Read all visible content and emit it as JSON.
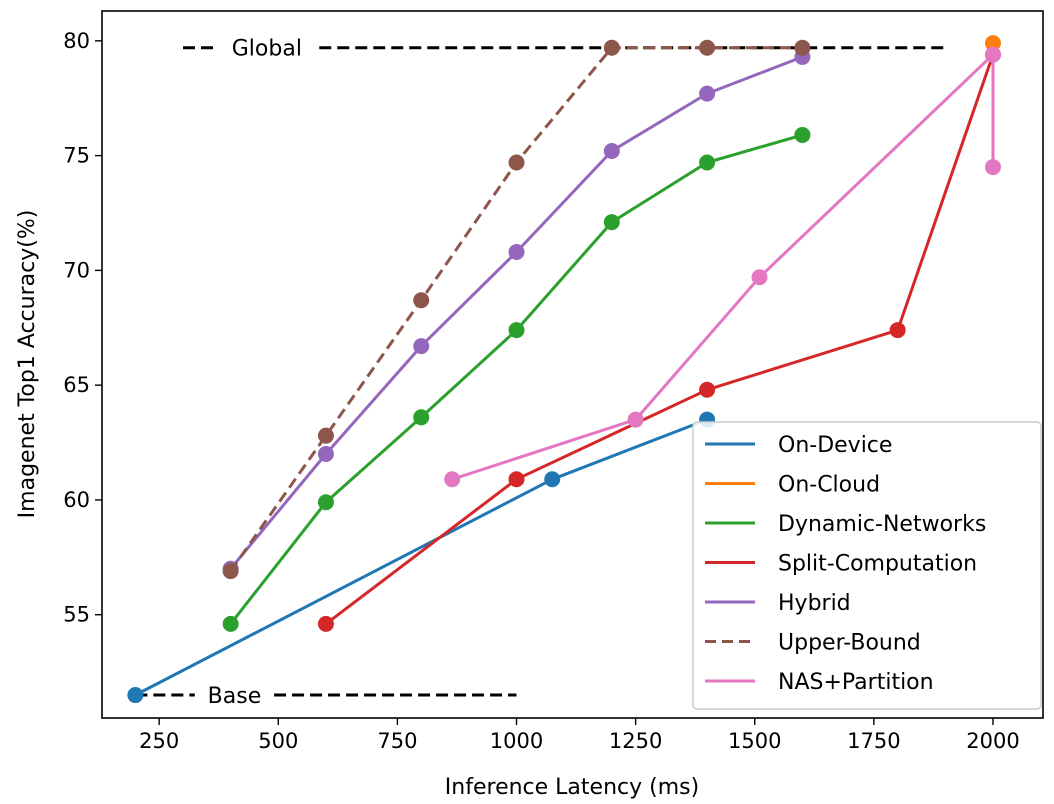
{
  "chart_data": {
    "type": "line",
    "xlabel": "Inference Latency (ms)",
    "ylabel": "Imagenet Top1 Accuracy(%)",
    "xlim": [
      130,
      2105
    ],
    "ylim": [
      50.5,
      81.3
    ],
    "xticks": [
      250,
      500,
      750,
      1000,
      1250,
      1500,
      1750,
      2000
    ],
    "yticks": [
      55,
      60,
      65,
      70,
      75,
      80
    ],
    "grid": false,
    "legend_position": "lower-right",
    "reference_lines": [
      {
        "label": "Global",
        "y": 79.7,
        "x": [
          300,
          1900
        ]
      },
      {
        "label": "Base",
        "y": 51.5,
        "x": [
          200,
          1000
        ]
      }
    ],
    "series": [
      {
        "name": "On-Device",
        "color": "#1f77b4",
        "dashed": false,
        "x": [
          200,
          1075,
          1400
        ],
        "y": [
          51.5,
          60.9,
          63.5
        ]
      },
      {
        "name": "On-Cloud",
        "color": "#ff7f0e",
        "dashed": false,
        "x": [
          2000
        ],
        "y": [
          79.9
        ]
      },
      {
        "name": "Dynamic-Networks",
        "color": "#2ca02c",
        "dashed": false,
        "x": [
          400,
          600,
          800,
          1000,
          1200,
          1400,
          1600
        ],
        "y": [
          54.6,
          59.9,
          63.6,
          67.4,
          72.1,
          74.7,
          75.9
        ]
      },
      {
        "name": "Split-Computation",
        "color": "#d62728",
        "dashed": false,
        "x": [
          600,
          1000,
          1400,
          1800,
          2000
        ],
        "y": [
          54.6,
          60.9,
          64.8,
          67.4,
          79.4
        ]
      },
      {
        "name": "Hybrid",
        "color": "#9467bd",
        "dashed": false,
        "x": [
          400,
          600,
          800,
          1000,
          1200,
          1400,
          1600
        ],
        "y": [
          57.0,
          62.0,
          66.7,
          70.8,
          75.2,
          77.7,
          79.3
        ]
      },
      {
        "name": "Upper-Bound",
        "color": "#8c564b",
        "dashed": true,
        "x": [
          400,
          600,
          800,
          1000,
          1200,
          1400,
          1600
        ],
        "y": [
          56.9,
          62.8,
          68.7,
          74.7,
          79.7,
          79.7,
          79.7
        ]
      },
      {
        "name": "NAS+Partition",
        "color": "#e377c2",
        "dashed": false,
        "x": [
          865,
          1250,
          1510,
          2000,
          2000
        ],
        "y": [
          60.9,
          63.5,
          69.7,
          79.4,
          74.5
        ]
      }
    ]
  }
}
